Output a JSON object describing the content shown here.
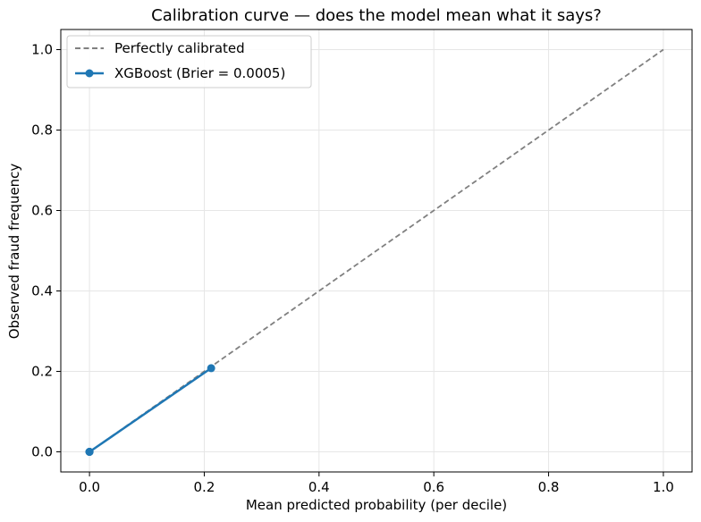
{
  "chart_data": {
    "type": "line",
    "title": "Calibration curve — does the model mean what it says?",
    "xlabel": "Mean predicted probability (per decile)",
    "ylabel": "Observed fraud frequency",
    "xlim": [
      -0.05,
      1.05
    ],
    "ylim": [
      -0.05,
      1.05
    ],
    "xticks": [
      0.0,
      0.2,
      0.4,
      0.6,
      0.8,
      1.0
    ],
    "yticks": [
      0.0,
      0.2,
      0.4,
      0.6,
      0.8,
      1.0
    ],
    "xtick_labels": [
      "0.0",
      "0.2",
      "0.4",
      "0.6",
      "0.8",
      "1.0"
    ],
    "ytick_labels": [
      "0.0",
      "0.2",
      "0.4",
      "0.6",
      "0.8",
      "1.0"
    ],
    "grid": true,
    "legend_position": "upper-left",
    "series": [
      {
        "name": "Perfectly calibrated",
        "style": "dashed",
        "color": "#808080",
        "x": [
          0.0,
          1.0
        ],
        "y": [
          0.0,
          1.0
        ]
      },
      {
        "name": "XGBoost (Brier = 0.0005)",
        "style": "solid-markers",
        "color": "#1f77b4",
        "x": [
          0.0,
          0.0,
          0.0,
          0.0,
          0.212
        ],
        "y": [
          0.0,
          0.0,
          0.0,
          0.0,
          0.208
        ]
      }
    ]
  }
}
